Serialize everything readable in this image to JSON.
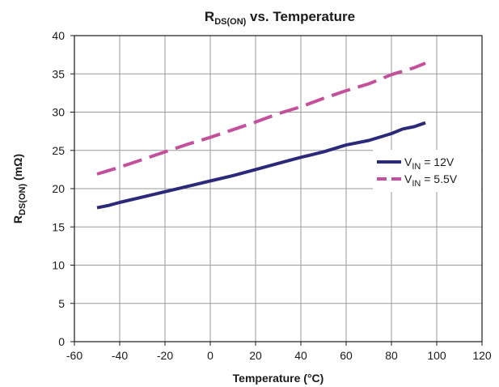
{
  "chart_data": {
    "type": "line",
    "title": {
      "main": "R",
      "sub": "DS(ON)",
      "rest": " vs. Temperature"
    },
    "xlabel": "Temperature (°C)",
    "ylabel": {
      "main": "R",
      "sub": "DS(ON)",
      "rest": " (mΩ)"
    },
    "xlim": [
      -60,
      120
    ],
    "ylim": [
      0,
      40
    ],
    "xticks": [
      -60,
      -40,
      -20,
      0,
      20,
      40,
      60,
      80,
      100,
      120
    ],
    "yticks": [
      0,
      5,
      10,
      15,
      20,
      25,
      30,
      35,
      40
    ],
    "grid": true,
    "legend_position": "right",
    "series": [
      {
        "name": {
          "main": "V",
          "sub": "IN",
          "rest": " = 12V"
        },
        "color": "#2b2a7a",
        "dash": "solid",
        "x": [
          -50,
          -45,
          -40,
          -30,
          -20,
          -10,
          0,
          10,
          20,
          30,
          40,
          50,
          60,
          70,
          80,
          85,
          90,
          95
        ],
        "y": [
          17.5,
          17.8,
          18.2,
          18.9,
          19.6,
          20.3,
          21.0,
          21.7,
          22.5,
          23.3,
          24.1,
          24.8,
          25.7,
          26.3,
          27.2,
          27.8,
          28.1,
          28.6
        ]
      },
      {
        "name": {
          "main": "V",
          "sub": "IN",
          "rest": " = 5.5V"
        },
        "color": "#c2509a",
        "dash": "dashed",
        "x": [
          -50,
          -40,
          -30,
          -20,
          -10,
          0,
          10,
          20,
          30,
          40,
          50,
          60,
          70,
          80,
          90,
          95
        ],
        "y": [
          21.9,
          22.8,
          23.8,
          24.8,
          25.8,
          26.7,
          27.7,
          28.7,
          29.8,
          30.7,
          31.8,
          32.8,
          33.7,
          34.9,
          35.8,
          36.4
        ]
      }
    ]
  }
}
